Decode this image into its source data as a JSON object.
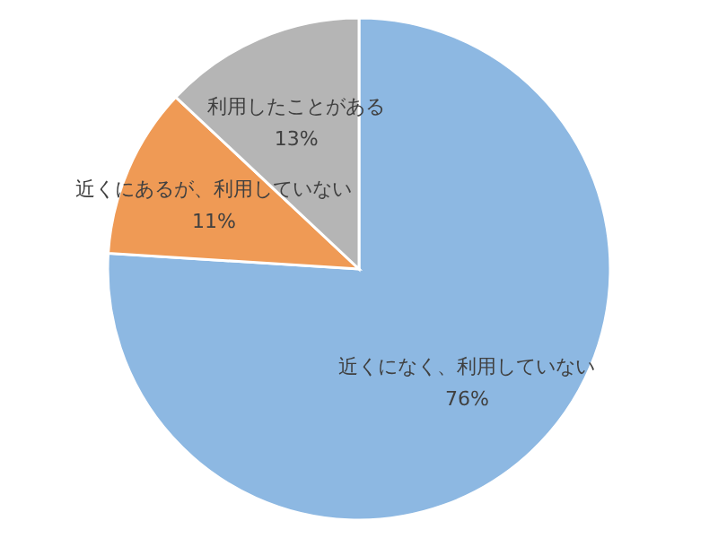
{
  "chart_data": {
    "type": "pie",
    "categories": [
      "近くになく、利用していない",
      "近くにあるが、利用していない",
      "利用したことがある"
    ],
    "values": [
      76,
      11,
      13
    ],
    "colors": [
      "#8db8e2",
      "#ef9a55",
      "#b5b5b5"
    ],
    "value_labels": [
      "76%",
      "11%",
      "13%"
    ],
    "legend": false
  }
}
